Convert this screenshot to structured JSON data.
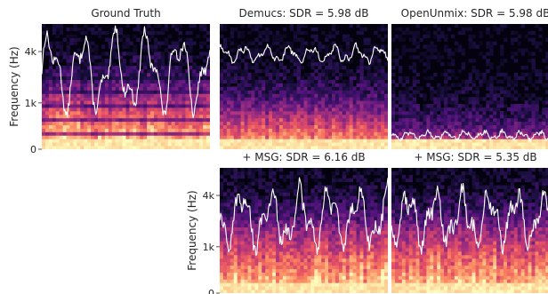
{
  "figure": {
    "colormap": "magma",
    "trace_color": "#ffffff",
    "ylabel": "Frequency (Hz)",
    "yticks": [
      "0",
      "1k",
      "4k"
    ],
    "panels": [
      {
        "title": "Ground Truth",
        "row": 0,
        "col": 0,
        "show_ylabel": true,
        "trace": {
          "base": 0.62,
          "amp": 0.24,
          "freq": 5.2,
          "jitter": 0.08,
          "cutoff": 0
        },
        "energy": {
          "top": 0.42,
          "dark_bands": true,
          "brightness": 1.0
        }
      },
      {
        "title": "Demucs: SDR = 5.98 dB",
        "row": 0,
        "col": 1,
        "show_ylabel": false,
        "trace": {
          "base": 0.76,
          "amp": 0.05,
          "freq": 7.5,
          "jitter": 0.04,
          "cutoff": 0
        },
        "energy": {
          "top": 0.32,
          "dark_bands": false,
          "brightness": 0.9
        }
      },
      {
        "title": "OpenUnmix: SDR = 5.98 dB",
        "row": 0,
        "col": 2,
        "show_ylabel": false,
        "trace": {
          "base": 0.11,
          "amp": 0.025,
          "freq": 9.0,
          "jitter": 0.03,
          "cutoff": 0
        },
        "energy": {
          "top": 0.12,
          "dark_bands": false,
          "brightness": 0.8
        }
      },
      {
        "title": "+ MSG: SDR = 6.16 dB",
        "row": 1,
        "col": 1,
        "show_ylabel": true,
        "trace": {
          "base": 0.6,
          "amp": 0.18,
          "freq": 5.8,
          "jitter": 0.12,
          "cutoff": 0
        },
        "energy": {
          "top": 0.5,
          "dark_bands": false,
          "brightness": 1.0
        }
      },
      {
        "title": "+ MSG: SDR = 5.35 dB",
        "row": 1,
        "col": 2,
        "show_ylabel": false,
        "trace": {
          "base": 0.6,
          "amp": 0.16,
          "freq": 6.2,
          "jitter": 0.12,
          "cutoff": 0
        },
        "energy": {
          "top": 0.5,
          "dark_bands": false,
          "brightness": 1.0
        }
      }
    ]
  }
}
